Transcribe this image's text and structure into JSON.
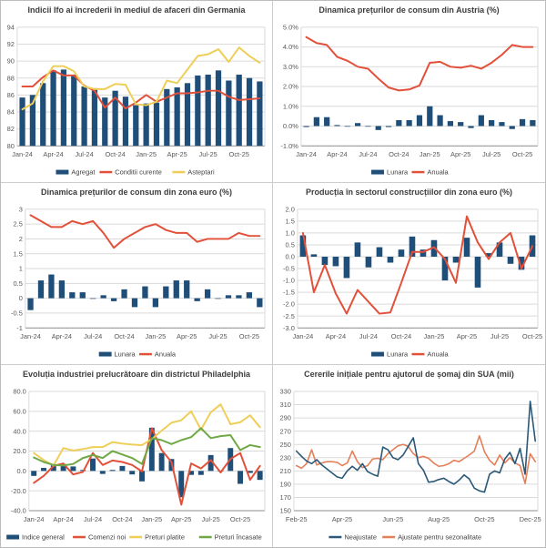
{
  "page": {
    "background": "#ffffff",
    "grid": "2x3 chart panels"
  },
  "colors": {
    "bar_blue": "#1F4E79",
    "line_red": "#E2503A",
    "line_yellow": "#EFCE58",
    "line_green": "#6FA845",
    "line_dark_blue": "#2A5878",
    "line_orange": "#E57F58",
    "gridline": "#DADADA",
    "axis": "#8C8C8C",
    "tick_text": "#595959",
    "title_text": "#3C3C3C"
  },
  "chart_data": [
    {
      "id": "ifo-germania",
      "type": "bar",
      "title": "Indicii Ifo ai încrederii în mediul de afaceri din Germania",
      "y": {
        "min": 80,
        "max": 94,
        "labels": [
          "94",
          "92",
          "90",
          "88",
          "86",
          "84",
          "82",
          "80"
        ],
        "bar_base": 80
      },
      "x": {
        "ticks": [
          {
            "i": 0,
            "label": "Jan-24"
          },
          {
            "i": 3,
            "label": "Apr-24"
          },
          {
            "i": 6,
            "label": "Jul-24"
          },
          {
            "i": 9,
            "label": "Oct-24"
          },
          {
            "i": 12,
            "label": "Jan-25"
          },
          {
            "i": 15,
            "label": "Apr-25"
          },
          {
            "i": 18,
            "label": "Jul-25"
          },
          {
            "i": 21,
            "label": "Oct-25"
          }
        ]
      },
      "series": [
        {
          "name": "Agregat",
          "type": "bar",
          "color": "#1F4E79",
          "values": [
            85.7,
            86.0,
            87.4,
            88.9,
            89.0,
            88.4,
            87.0,
            86.8,
            85.7,
            86.5,
            85.8,
            84.8,
            85.0,
            85.1,
            86.7,
            86.9,
            87.4,
            88.3,
            88.4,
            88.9,
            87.7,
            88.4,
            88.0,
            87.6
          ]
        },
        {
          "name": "Conditii curente",
          "type": "line",
          "color": "#E2503A",
          "values": [
            87.0,
            87.0,
            88.1,
            88.9,
            88.3,
            88.3,
            87.1,
            86.5,
            84.5,
            85.7,
            84.4,
            85.1,
            86.0,
            85.2,
            85.7,
            86.2,
            86.2,
            86.3,
            86.5,
            86.5,
            85.8,
            85.4,
            85.5,
            85.6
          ]
        },
        {
          "name": "Asteptari",
          "type": "line",
          "color": "#EFCE58",
          "values": [
            84.3,
            85.0,
            87.6,
            89.4,
            89.4,
            88.8,
            87.0,
            86.7,
            86.7,
            87.3,
            87.2,
            84.9,
            84.8,
            85.2,
            87.7,
            87.4,
            89.0,
            90.6,
            90.8,
            91.4,
            89.9,
            91.6,
            90.6,
            89.8
          ]
        }
      ]
    },
    {
      "id": "cpi-austria",
      "type": "bar",
      "title": "Dinamica prețurilor de consum din Austria (%)",
      "y": {
        "min": -1,
        "max": 5,
        "labels": [
          "5.0%",
          "4.0%",
          "3.0%",
          "2.0%",
          "1.0%",
          "0.0%",
          "-1.0%"
        ],
        "bar_base": 0
      },
      "x": {
        "ticks": [
          {
            "i": 0,
            "label": "Jan-24"
          },
          {
            "i": 3,
            "label": "Apr-24"
          },
          {
            "i": 6,
            "label": "Jul-24"
          },
          {
            "i": 9,
            "label": "Oct-24"
          },
          {
            "i": 12,
            "label": "Jan-25"
          },
          {
            "i": 15,
            "label": "Apr-25"
          },
          {
            "i": 18,
            "label": "Jul-25"
          },
          {
            "i": 21,
            "label": "Oct-25"
          }
        ]
      },
      "series": [
        {
          "name": "Lunara",
          "type": "bar",
          "color": "#1F4E79",
          "values": [
            -0.05,
            0.45,
            0.45,
            0.05,
            0.0,
            0.15,
            0.0,
            -0.2,
            -0.05,
            0.3,
            0.3,
            0.55,
            1.0,
            0.55,
            0.25,
            0.2,
            -0.1,
            0.55,
            0.3,
            0.2,
            -0.15,
            0.35,
            0.3
          ]
        },
        {
          "name": "Anuala",
          "type": "line",
          "color": "#E2503A",
          "values": [
            4.5,
            4.2,
            4.1,
            3.5,
            3.3,
            3.0,
            2.9,
            2.4,
            1.95,
            1.8,
            1.85,
            2.05,
            3.2,
            3.25,
            3.0,
            2.95,
            3.05,
            2.9,
            3.2,
            3.6,
            4.1,
            4.0,
            4.0
          ]
        }
      ]
    },
    {
      "id": "cpi-zona-euro",
      "type": "bar",
      "title": "Dinamica prețurilor de consum din zona euro (%)",
      "y": {
        "min": -1,
        "max": 3,
        "labels": [
          "3",
          "2.5",
          "2",
          "1.5",
          "1",
          "0.5",
          "0",
          "-0.5",
          "-1"
        ],
        "bar_base": 0
      },
      "x": {
        "ticks": [
          {
            "i": 0,
            "label": "Jan-24"
          },
          {
            "i": 3,
            "label": "Apr-24"
          },
          {
            "i": 6,
            "label": "Jul-24"
          },
          {
            "i": 9,
            "label": "Oct-24"
          },
          {
            "i": 12,
            "label": "Jan-25"
          },
          {
            "i": 15,
            "label": "Apr-25"
          },
          {
            "i": 18,
            "label": "Jul-25"
          },
          {
            "i": 21,
            "label": "Oct-25"
          }
        ]
      },
      "series": [
        {
          "name": "Lunara",
          "type": "bar",
          "color": "#1F4E79",
          "values": [
            -0.4,
            0.6,
            0.8,
            0.6,
            0.2,
            0.2,
            0.0,
            0.1,
            -0.1,
            0.3,
            -0.3,
            0.4,
            -0.3,
            0.4,
            0.6,
            0.6,
            -0.1,
            0.3,
            0.0,
            0.1,
            0.1,
            0.2,
            -0.3
          ]
        },
        {
          "name": "Anuala",
          "type": "line",
          "color": "#E2503A",
          "values": [
            2.8,
            2.6,
            2.4,
            2.4,
            2.6,
            2.5,
            2.6,
            2.2,
            1.7,
            2.0,
            2.2,
            2.4,
            2.5,
            2.3,
            2.2,
            2.2,
            1.9,
            2.0,
            2.0,
            2.0,
            2.2,
            2.1,
            2.1
          ]
        }
      ]
    },
    {
      "id": "constructii-zona-euro",
      "type": "bar",
      "title": "Producția în sectorul construcțiilor din zona euro (%)",
      "y": {
        "min": -3,
        "max": 2,
        "labels": [
          "2.0",
          "1.5",
          "1.0",
          "0.5",
          "0.0",
          "-0.5",
          "-1.0",
          "-1.5",
          "-2.0",
          "-2.5",
          "-3.0"
        ],
        "bar_base": 0
      },
      "x": {
        "ticks": [
          {
            "i": 0,
            "label": "Jan-24"
          },
          {
            "i": 3,
            "label": "Apr-24"
          },
          {
            "i": 6,
            "label": "Jul-24"
          },
          {
            "i": 9,
            "label": "Oct-24"
          },
          {
            "i": 12,
            "label": "Jan-25"
          },
          {
            "i": 15,
            "label": "Apr-25"
          },
          {
            "i": 18,
            "label": "Jul-25"
          },
          {
            "i": 21,
            "label": "Oct-25"
          }
        ]
      },
      "series": [
        {
          "name": "Lunara",
          "type": "bar",
          "color": "#1F4E79",
          "values": [
            0.9,
            0.1,
            -0.35,
            -0.4,
            -0.9,
            0.6,
            -0.45,
            0.4,
            -0.25,
            0.3,
            0.85,
            0.3,
            0.7,
            -1.0,
            -0.25,
            0.8,
            -1.3,
            0.15,
            0.6,
            -0.3,
            -0.55,
            0.9
          ]
        },
        {
          "name": "Anuala",
          "type": "line",
          "color": "#E2503A",
          "values": [
            1.0,
            -1.5,
            -0.35,
            -1.55,
            -2.4,
            -1.4,
            -1.9,
            -2.4,
            -2.35,
            -1.1,
            0.2,
            0.2,
            0.4,
            -0.1,
            -1.1,
            1.7,
            0.6,
            -0.1,
            0.6,
            1.0,
            -0.5,
            0.45
          ]
        }
      ]
    },
    {
      "id": "philadelphia",
      "type": "bar",
      "title": "Evoluția industriei prelucrătoare din districtul Philadelphia",
      "y": {
        "min": -40,
        "max": 80,
        "labels": [
          "80.0",
          "60.0",
          "40.0",
          "20.0",
          "0.0",
          "-20.0",
          "-40.0"
        ],
        "bar_base": 0
      },
      "x": {
        "ticks": [
          {
            "i": 0,
            "label": "Jan-24"
          },
          {
            "i": 3,
            "label": "Apr-24"
          },
          {
            "i": 6,
            "label": "Jul-24"
          },
          {
            "i": 9,
            "label": "Oct-24"
          },
          {
            "i": 12,
            "label": "Jan-25"
          },
          {
            "i": 15,
            "label": "Apr-25"
          },
          {
            "i": 18,
            "label": "Jul-25"
          },
          {
            "i": 21,
            "label": "Oct-25"
          }
        ]
      },
      "series": [
        {
          "name": "Indice general",
          "type": "bar",
          "color": "#1F4E79",
          "values": [
            -5,
            3,
            6,
            7,
            4.5,
            1,
            12.5,
            -3,
            1,
            5,
            -3.5,
            -10.5,
            43.5,
            18,
            12,
            -26.5,
            -4,
            -4,
            16,
            -0.5,
            23,
            -13,
            -2,
            -9
          ]
        },
        {
          "name": "Comenzi noi",
          "type": "line",
          "color": "#E2503A",
          "values": [
            -12,
            -5,
            5,
            7.5,
            -3.5,
            -1,
            18,
            6,
            10.5,
            9,
            6,
            -0.5,
            43,
            21,
            9,
            -34,
            7.5,
            2.5,
            11,
            -1.5,
            12,
            18,
            -9,
            5
          ]
        },
        {
          "name": "Preturi platite",
          "type": "line",
          "color": "#EFCE58",
          "values": [
            18,
            11,
            5.5,
            23,
            20.5,
            22,
            24,
            24,
            29,
            27.5,
            26.5,
            26,
            32,
            40.5,
            48.5,
            51,
            60,
            41.5,
            59,
            67,
            47,
            49,
            56,
            44
          ]
        },
        {
          "name": "Preturi încasate",
          "type": "line",
          "color": "#6FA845",
          "values": [
            13.5,
            9,
            6,
            5.5,
            7,
            13,
            16,
            13,
            20,
            16.5,
            13,
            7,
            33,
            31,
            27,
            31,
            34,
            43,
            33,
            35,
            36,
            21,
            26,
            24
          ]
        }
      ]
    },
    {
      "id": "somaj-sua",
      "type": "line",
      "title": "Cererile inițiale pentru ajutorul de șomaj din SUA (mii)",
      "y": {
        "min": 150,
        "max": 330,
        "labels": [
          "330",
          "310",
          "290",
          "270",
          "250",
          "230",
          "210",
          "190",
          "170",
          "150"
        ],
        "bar_base": 0
      },
      "x": {
        "ticks": [
          {
            "i": 0,
            "label": "Feb-25"
          },
          {
            "i": 9,
            "label": "Apr-25"
          },
          {
            "i": 19,
            "label": "Jun-25"
          },
          {
            "i": 28,
            "label": "Aug-25"
          },
          {
            "i": 37,
            "label": "Oct-25"
          },
          {
            "i": 46,
            "label": "Dec-25"
          }
        ]
      },
      "series": [
        {
          "name": "Neajustate",
          "type": "line",
          "color": "#2A5878",
          "z": 2,
          "values": [
            240,
            232,
            225,
            221,
            227,
            219,
            213,
            207,
            201,
            199,
            210,
            217,
            211,
            221,
            209,
            205,
            202,
            246,
            242,
            230,
            227,
            234,
            247,
            260,
            221,
            211,
            193,
            194,
            197,
            199,
            194,
            190,
            196,
            204,
            198,
            184,
            180,
            178,
            205,
            210,
            207,
            228,
            238,
            221,
            244,
            205,
            315,
            255
          ]
        },
        {
          "name": "Ajustate pentru sezonalitate",
          "type": "line",
          "color": "#E57F58",
          "z": 1,
          "values": [
            218,
            214,
            221,
            242,
            219,
            222,
            224,
            224,
            223,
            218,
            222,
            240,
            224,
            215,
            218,
            228,
            229,
            227,
            236,
            242,
            248,
            250,
            247,
            236,
            230,
            232,
            229,
            222,
            217,
            218,
            221,
            226,
            224,
            229,
            234,
            240,
            263,
            239,
            226,
            219,
            234,
            222,
            230,
            222,
            218,
            191,
            236,
            224
          ]
        }
      ]
    }
  ]
}
